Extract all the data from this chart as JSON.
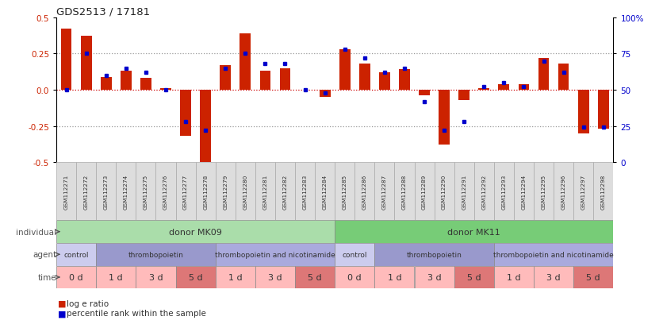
{
  "title": "GDS2513 / 17181",
  "samples": [
    "GSM112271",
    "GSM112272",
    "GSM112273",
    "GSM112274",
    "GSM112275",
    "GSM112276",
    "GSM112277",
    "GSM112278",
    "GSM112279",
    "GSM112280",
    "GSM112281",
    "GSM112282",
    "GSM112283",
    "GSM112284",
    "GSM112285",
    "GSM112286",
    "GSM112287",
    "GSM112288",
    "GSM112289",
    "GSM112290",
    "GSM112291",
    "GSM112292",
    "GSM112293",
    "GSM112294",
    "GSM112295",
    "GSM112296",
    "GSM112297",
    "GSM112298"
  ],
  "log_e_ratio": [
    0.42,
    0.37,
    0.09,
    0.13,
    0.08,
    0.01,
    -0.32,
    -0.5,
    0.17,
    0.39,
    0.13,
    0.15,
    0.0,
    -0.05,
    0.28,
    0.18,
    0.12,
    0.14,
    -0.04,
    -0.38,
    -0.07,
    0.01,
    0.04,
    0.04,
    0.22,
    0.18,
    -0.3,
    -0.27
  ],
  "percentile_rank": [
    50,
    75,
    60,
    65,
    62,
    50,
    28,
    22,
    65,
    75,
    68,
    68,
    50,
    48,
    78,
    72,
    62,
    65,
    42,
    22,
    28,
    52,
    55,
    52,
    70,
    62,
    24,
    24
  ],
  "bar_color": "#cc2200",
  "dot_color": "#0000cc",
  "bg_color": "#ffffff",
  "ylim": [
    -0.5,
    0.5
  ],
  "yticks": [
    -0.5,
    -0.25,
    0.0,
    0.25,
    0.5
  ],
  "y2ticks": [
    0,
    25,
    50,
    75,
    100
  ],
  "individual_mk09_color": "#aaddaa",
  "individual_mk11_color": "#77cc77",
  "agent_control_color": "#ccccee",
  "agent_tpo_color": "#9999cc",
  "agent_tponico_color": "#aaaadd",
  "time_light_color": "#ffbbbb",
  "time_dark_color": "#dd7777",
  "sample_box_color": "#dddddd",
  "row_label_color": "#555555",
  "legend_log_e": "log e ratio",
  "legend_pct": "percentile rank within the sample",
  "time_boxes": [
    [
      0,
      1,
      "0 d",
      false
    ],
    [
      2,
      3,
      "1 d",
      false
    ],
    [
      4,
      5,
      "3 d",
      false
    ],
    [
      6,
      7,
      "5 d",
      true
    ],
    [
      8,
      9,
      "1 d",
      false
    ],
    [
      10,
      11,
      "3 d",
      false
    ],
    [
      12,
      13,
      "5 d",
      true
    ],
    [
      14,
      15,
      "0 d",
      false
    ],
    [
      16,
      17,
      "1 d",
      false
    ],
    [
      18,
      19,
      "3 d",
      false
    ],
    [
      20,
      21,
      "5 d",
      true
    ],
    [
      22,
      23,
      "1 d",
      false
    ],
    [
      24,
      25,
      "3 d",
      false
    ],
    [
      26,
      27,
      "5 d",
      true
    ]
  ],
  "agent_boxes": [
    [
      0,
      1,
      "control",
      "#ccccee"
    ],
    [
      2,
      7,
      "thrombopoietin",
      "#9999cc"
    ],
    [
      8,
      13,
      "thrombopoietin and nicotinamide",
      "#aaaadd"
    ],
    [
      14,
      15,
      "control",
      "#ccccee"
    ],
    [
      16,
      21,
      "thrombopoietin",
      "#9999cc"
    ],
    [
      22,
      27,
      "thrombopoietin and nicotinamide",
      "#aaaadd"
    ]
  ],
  "individual_boxes": [
    [
      0,
      13,
      "donor MK09",
      "#aaddaa"
    ],
    [
      14,
      27,
      "donor MK11",
      "#77cc77"
    ]
  ]
}
